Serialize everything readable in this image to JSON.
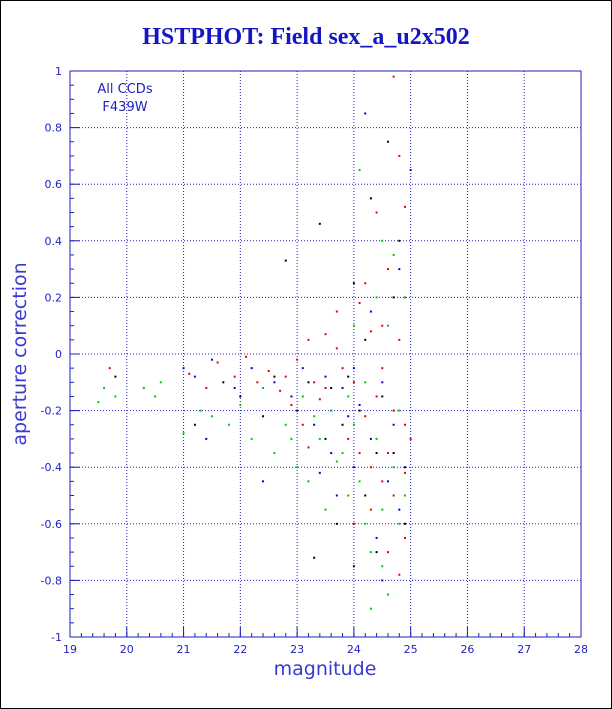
{
  "chart_data": {
    "type": "scatter",
    "title": "HSTPHOT: Field sex_a_u2x502",
    "xlabel": "magnitude",
    "ylabel": "aperture correction",
    "xlim": [
      19,
      28
    ],
    "ylim": [
      -1,
      1
    ],
    "x_ticks": [
      "19",
      "20",
      "21",
      "22",
      "23",
      "24",
      "25",
      "26",
      "27",
      "28"
    ],
    "y_ticks": [
      "-1",
      "-0.8",
      "-0.6",
      "-0.4",
      "-0.2",
      "0",
      "0.2",
      "0.4",
      "0.6",
      "0.8",
      "1"
    ],
    "grid": true,
    "grid_style": "dotted",
    "annotations": [
      "All CCDs",
      "F439W"
    ],
    "colors": {
      "title": "#1515c8",
      "axes": "#1f1fc0",
      "grid": "#1f1fc0",
      "frame": "#000000"
    },
    "series": [
      {
        "color": "#e00000",
        "points": [
          [
            19.7,
            -0.05
          ],
          [
            21.1,
            -0.07
          ],
          [
            21.4,
            -0.12
          ],
          [
            21.6,
            -0.03
          ],
          [
            21.9,
            -0.08
          ],
          [
            22.1,
            -0.01
          ],
          [
            22.3,
            -0.1
          ],
          [
            22.5,
            -0.06
          ],
          [
            22.7,
            -0.13
          ],
          [
            22.8,
            -0.08
          ],
          [
            23.0,
            -0.02
          ],
          [
            23.1,
            -0.25
          ],
          [
            23.2,
            0.05
          ],
          [
            23.3,
            -0.1
          ],
          [
            23.4,
            -0.16
          ],
          [
            23.5,
            0.07
          ],
          [
            23.6,
            -0.2
          ],
          [
            23.7,
            0.02
          ],
          [
            23.8,
            -0.05
          ],
          [
            23.9,
            -0.3
          ],
          [
            24.0,
            -0.1
          ],
          [
            24.1,
            0.18
          ],
          [
            24.2,
            -0.22
          ],
          [
            24.3,
            -0.4
          ],
          [
            24.4,
            -0.15
          ],
          [
            24.5,
            0.1
          ],
          [
            24.6,
            -0.35
          ],
          [
            24.7,
            -0.5
          ],
          [
            24.8,
            0.05
          ],
          [
            24.9,
            -0.25
          ],
          [
            25.0,
            -0.3
          ],
          [
            24.9,
            -0.65
          ],
          [
            24.8,
            -0.78
          ],
          [
            24.7,
            -0.2
          ],
          [
            24.6,
            0.3
          ],
          [
            24.5,
            -0.05
          ],
          [
            24.4,
            0.5
          ],
          [
            24.3,
            -0.55
          ],
          [
            24.8,
            0.7
          ],
          [
            24.7,
            0.98
          ],
          [
            24.9,
            0.52
          ],
          [
            24.5,
            -0.45
          ],
          [
            24.2,
            0.25
          ],
          [
            23.7,
            0.15
          ],
          [
            23.2,
            -0.33
          ],
          [
            22.9,
            -0.18
          ],
          [
            24.0,
            -0.6
          ],
          [
            24.6,
            -0.7
          ],
          [
            24.9,
            -0.42
          ],
          [
            24.3,
            0.08
          ],
          [
            23.5,
            -0.12
          ],
          [
            24.1,
            -0.35
          ]
        ]
      },
      {
        "color": "#00c800",
        "points": [
          [
            19.5,
            -0.17
          ],
          [
            19.6,
            -0.12
          ],
          [
            19.8,
            -0.15
          ],
          [
            20.3,
            -0.12
          ],
          [
            20.5,
            -0.15
          ],
          [
            20.6,
            -0.1
          ],
          [
            21.0,
            -0.28
          ],
          [
            21.3,
            -0.2
          ],
          [
            21.5,
            -0.22
          ],
          [
            21.8,
            -0.25
          ],
          [
            22.0,
            -0.18
          ],
          [
            22.2,
            -0.3
          ],
          [
            22.4,
            -0.12
          ],
          [
            22.6,
            -0.35
          ],
          [
            22.8,
            -0.25
          ],
          [
            23.0,
            -0.4
          ],
          [
            23.1,
            -0.15
          ],
          [
            23.2,
            -0.45
          ],
          [
            23.4,
            -0.3
          ],
          [
            23.5,
            -0.55
          ],
          [
            23.6,
            -0.2
          ],
          [
            23.8,
            -0.35
          ],
          [
            23.9,
            -0.5
          ],
          [
            24.0,
            -0.25
          ],
          [
            24.1,
            -0.45
          ],
          [
            24.2,
            -0.6
          ],
          [
            24.3,
            -0.7
          ],
          [
            24.4,
            -0.3
          ],
          [
            24.5,
            -0.55
          ],
          [
            24.6,
            -0.85
          ],
          [
            24.7,
            -0.4
          ],
          [
            24.8,
            -0.6
          ],
          [
            24.9,
            -0.5
          ],
          [
            24.4,
            0.2
          ],
          [
            24.5,
            0.4
          ],
          [
            24.1,
            0.65
          ],
          [
            24.6,
            0.1
          ],
          [
            24.3,
            -0.9
          ],
          [
            23.9,
            -0.15
          ],
          [
            23.3,
            -0.22
          ],
          [
            24.7,
            0.35
          ],
          [
            24.9,
            0.2
          ],
          [
            24.2,
            -0.1
          ],
          [
            23.7,
            -0.38
          ],
          [
            22.9,
            -0.3
          ],
          [
            24.0,
            0.1
          ],
          [
            24.8,
            -0.2
          ],
          [
            24.5,
            -0.75
          ]
        ]
      },
      {
        "color": "#0000e0",
        "points": [
          [
            21.0,
            -0.05
          ],
          [
            21.2,
            -0.08
          ],
          [
            21.5,
            -0.02
          ],
          [
            21.9,
            -0.12
          ],
          [
            22.2,
            -0.05
          ],
          [
            22.6,
            -0.1
          ],
          [
            22.9,
            -0.15
          ],
          [
            23.1,
            -0.05
          ],
          [
            23.3,
            -0.25
          ],
          [
            23.5,
            -0.08
          ],
          [
            23.6,
            -0.35
          ],
          [
            23.8,
            -0.12
          ],
          [
            23.9,
            -0.22
          ],
          [
            24.0,
            -0.4
          ],
          [
            24.1,
            -0.18
          ],
          [
            24.2,
            0.85
          ],
          [
            24.3,
            -0.3
          ],
          [
            24.4,
            -0.65
          ],
          [
            24.5,
            -0.1
          ],
          [
            24.6,
            -0.45
          ],
          [
            24.7,
            -0.25
          ],
          [
            24.8,
            -0.55
          ],
          [
            24.9,
            -0.4
          ],
          [
            25.0,
            0.65
          ],
          [
            24.8,
            0.3
          ],
          [
            23.7,
            -0.5
          ],
          [
            22.4,
            -0.45
          ],
          [
            21.4,
            -0.3
          ],
          [
            24.5,
            -0.8
          ],
          [
            24.3,
            0.15
          ],
          [
            23.4,
            -0.42
          ],
          [
            24.0,
            -0.05
          ]
        ]
      },
      {
        "color": "#000000",
        "points": [
          [
            19.8,
            -0.08
          ],
          [
            21.2,
            -0.25
          ],
          [
            21.7,
            -0.1
          ],
          [
            22.0,
            -0.15
          ],
          [
            22.4,
            -0.22
          ],
          [
            22.6,
            -0.08
          ],
          [
            22.8,
            0.33
          ],
          [
            23.0,
            -0.2
          ],
          [
            23.2,
            -0.1
          ],
          [
            23.4,
            0.46
          ],
          [
            23.5,
            -0.3
          ],
          [
            23.6,
            -0.12
          ],
          [
            23.7,
            -0.6
          ],
          [
            23.9,
            -0.08
          ],
          [
            24.0,
            0.25
          ],
          [
            24.1,
            -0.2
          ],
          [
            24.2,
            -0.5
          ],
          [
            24.3,
            0.55
          ],
          [
            24.4,
            -0.7
          ],
          [
            24.5,
            -0.15
          ],
          [
            24.6,
            0.75
          ],
          [
            24.7,
            -0.35
          ],
          [
            24.8,
            0.4
          ],
          [
            24.9,
            -0.6
          ],
          [
            24.0,
            -0.75
          ],
          [
            23.3,
            -0.72
          ],
          [
            24.4,
            -0.35
          ],
          [
            24.7,
            0.2
          ],
          [
            23.8,
            -0.25
          ],
          [
            24.2,
            0.05
          ]
        ]
      }
    ]
  }
}
